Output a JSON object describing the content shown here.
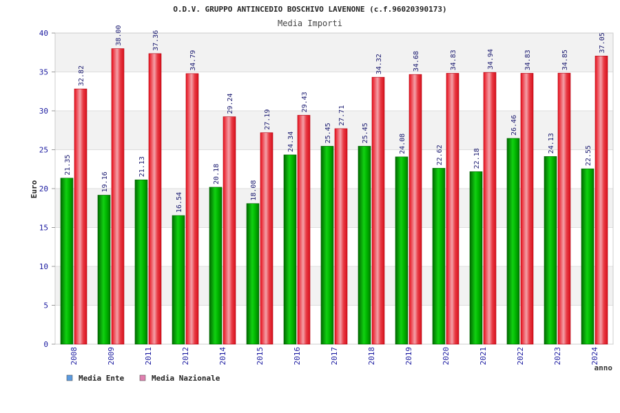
{
  "chart_data": {
    "type": "bar",
    "title": "O.D.V. GRUPPO ANTINCEDIO BOSCHIVO LAVENONE (c.f.96020390173)",
    "subtitle": "Media Importi",
    "xlabel": "anno",
    "ylabel": "Euro",
    "ylim": [
      0,
      40
    ],
    "yticks": [
      "0",
      "5",
      "10",
      "15",
      "20",
      "25",
      "30",
      "35",
      "40"
    ],
    "categories": [
      "2008",
      "2009",
      "2011",
      "2012",
      "2014",
      "2015",
      "2016",
      "2017",
      "2018",
      "2019",
      "2020",
      "2021",
      "2022",
      "2023",
      "2024"
    ],
    "series": [
      {
        "name": "Media Ente",
        "color": "#00b400",
        "values": [
          21.35,
          19.16,
          21.13,
          16.54,
          20.18,
          18.08,
          24.34,
          25.45,
          25.45,
          24.08,
          22.62,
          22.18,
          26.46,
          24.13,
          22.55
        ],
        "labels": [
          "21.35",
          "19.16",
          "21.13",
          "16.54",
          "20.18",
          "18.08",
          "24.34",
          "25.45",
          "25.45",
          "24.08",
          "22.62",
          "22.18",
          "26.46",
          "24.13",
          "22.55"
        ]
      },
      {
        "name": "Media Nazionale",
        "color": "#e8202a",
        "values": [
          32.82,
          38.0,
          37.36,
          34.79,
          29.24,
          27.19,
          29.43,
          27.71,
          34.32,
          34.68,
          34.83,
          34.94,
          34.83,
          34.85,
          37.05
        ],
        "labels": [
          "32.82",
          "38.00",
          "37.36",
          "34.79",
          "29.24",
          "27.19",
          "29.43",
          "27.71",
          "34.32",
          "34.68",
          "34.83",
          "34.94",
          "34.83",
          "34.85",
          "37.05"
        ]
      }
    ],
    "legend": [
      {
        "label": "Media Ente",
        "color": "#5b9be0"
      },
      {
        "label": "Media Nazionale",
        "color": "#e080b0"
      }
    ],
    "legend_position": "bottom-left",
    "grid": true
  }
}
